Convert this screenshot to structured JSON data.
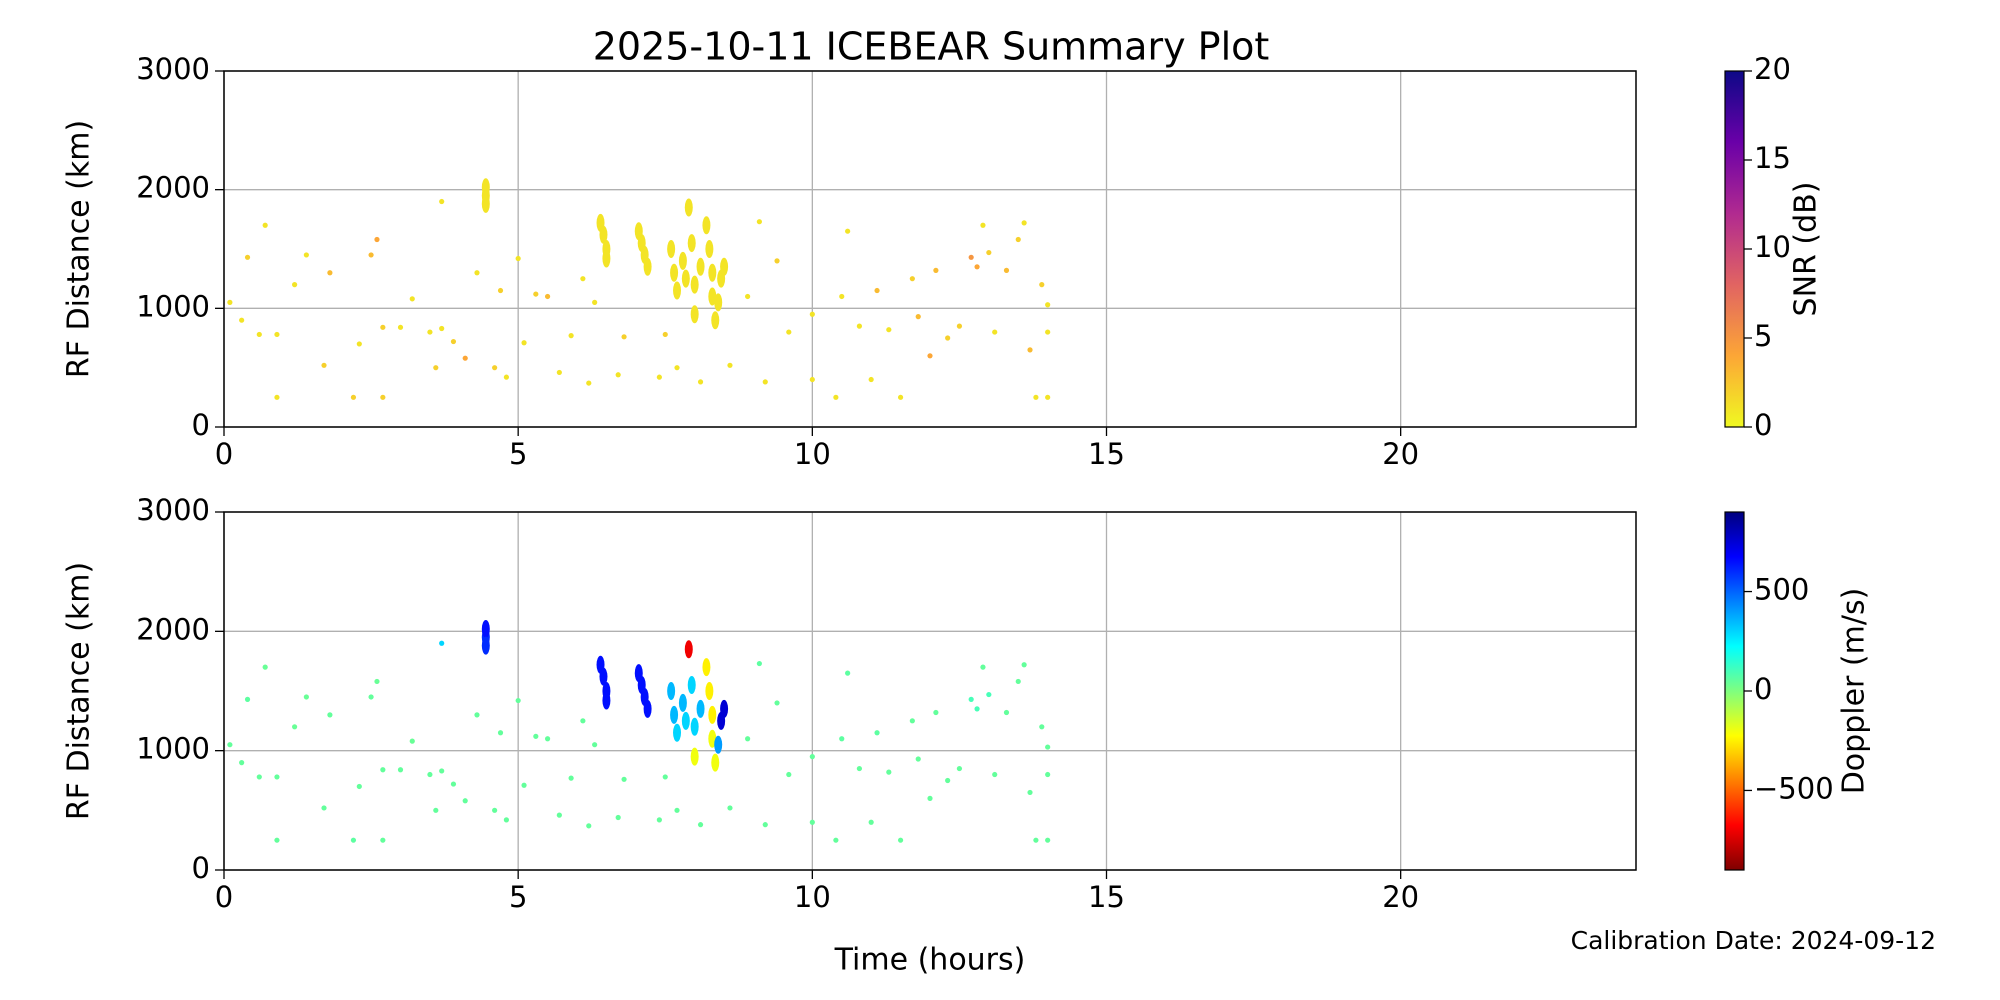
{
  "chart_data": [
    {
      "type": "scatter",
      "title": "2025-10-11 ICEBEAR Summary Plot",
      "ylabel": "RF Distance (km)",
      "x": [
        0.1,
        0.3,
        0.4,
        0.6,
        0.7,
        0.9,
        0.9,
        1.2,
        1.4,
        1.7,
        1.8,
        2.2,
        2.3,
        2.5,
        2.6,
        2.7,
        2.7,
        3.0,
        3.2,
        3.5,
        3.6,
        3.7,
        3.7,
        3.9,
        4.1,
        4.3,
        4.6,
        4.7,
        4.8,
        5.0,
        5.1,
        5.3,
        5.5,
        5.7,
        5.9,
        6.1,
        6.2,
        6.3,
        6.7,
        6.8,
        7.4,
        7.5,
        7.7,
        8.1,
        8.6,
        8.9,
        9.1,
        9.2,
        9.4,
        9.6,
        10.0,
        10.0,
        10.4,
        10.5,
        10.6,
        10.8,
        11.0,
        11.1,
        11.3,
        11.5,
        11.7,
        11.8,
        12.0,
        12.1,
        12.3,
        12.5,
        12.7,
        12.8,
        12.9,
        13.0,
        13.1,
        13.3,
        13.5,
        13.6,
        13.7,
        13.8,
        13.9,
        14.0,
        14.0,
        14.0,
        4.45,
        4.45,
        4.45,
        6.4,
        6.45,
        6.5,
        6.5,
        7.05,
        7.1,
        7.15,
        7.2,
        7.6,
        7.65,
        7.7,
        7.8,
        7.85,
        7.9,
        7.95,
        8.0,
        8.0,
        8.1,
        8.2,
        8.25,
        8.3,
        8.3,
        8.35,
        8.45,
        8.5,
        8.4
      ],
      "y": [
        1050,
        900,
        1430,
        780,
        1700,
        250,
        780,
        1200,
        1450,
        520,
        1300,
        250,
        700,
        1450,
        1580,
        840,
        250,
        840,
        1080,
        800,
        500,
        1900,
        830,
        720,
        580,
        1300,
        500,
        1150,
        420,
        1420,
        710,
        1120,
        1100,
        460,
        770,
        1250,
        370,
        1050,
        440,
        760,
        420,
        780,
        500,
        380,
        520,
        1100,
        1730,
        380,
        1400,
        800,
        400,
        950,
        250,
        1100,
        1650,
        850,
        400,
        1150,
        820,
        250,
        1250,
        930,
        600,
        1320,
        750,
        850,
        1430,
        1350,
        1700,
        1470,
        800,
        1320,
        1580,
        1720,
        650,
        250,
        1200,
        250,
        1030,
        800,
        1950,
        2020,
        1880,
        1720,
        1620,
        1500,
        1420,
        1650,
        1550,
        1450,
        1350,
        1500,
        1300,
        1150,
        1400,
        1250,
        1850,
        1550,
        950,
        1200,
        1350,
        1700,
        1500,
        1300,
        1100,
        900,
        1250,
        1350,
        1050
      ],
      "c": [
        1,
        1,
        2,
        1,
        1,
        1,
        1,
        1,
        1,
        2,
        3,
        2,
        1,
        3,
        4,
        2,
        2,
        1,
        1,
        1,
        2,
        1,
        1,
        2,
        4,
        1,
        2,
        2,
        1,
        1,
        1,
        2,
        3,
        1,
        1,
        1,
        1,
        1,
        1,
        2,
        1,
        2,
        1,
        1,
        1,
        1,
        1,
        1,
        2,
        1,
        1,
        1,
        1,
        1,
        1,
        1,
        1,
        3,
        1,
        1,
        2,
        3,
        4,
        3,
        2,
        2,
        5,
        4,
        1,
        2,
        1,
        3,
        2,
        1,
        3,
        1,
        2,
        1,
        1,
        1,
        1,
        1,
        1,
        1,
        1,
        1,
        1,
        1,
        1,
        1,
        1,
        1,
        1,
        1,
        1,
        1,
        1,
        1,
        1,
        1,
        1,
        1,
        1,
        1,
        1,
        1,
        1,
        1,
        1
      ],
      "xlim": [
        0,
        24
      ],
      "xticks": [
        0,
        5,
        10,
        15,
        20
      ],
      "ylim": [
        0,
        3000
      ],
      "yticks": [
        0,
        1000,
        2000,
        3000
      ],
      "grid": true,
      "colorbar": {
        "label": "SNR (dB)",
        "clim": [
          0,
          20
        ],
        "ticks": [
          0,
          5,
          10,
          15,
          20
        ],
        "colormap": "plasma_r"
      }
    },
    {
      "type": "scatter",
      "ylabel": "RF Distance (km)",
      "xlabel": "Time (hours)",
      "x": [
        0.1,
        0.3,
        0.4,
        0.6,
        0.7,
        0.9,
        0.9,
        1.2,
        1.4,
        1.7,
        1.8,
        2.2,
        2.3,
        2.5,
        2.6,
        2.7,
        2.7,
        3.0,
        3.2,
        3.5,
        3.6,
        3.7,
        3.7,
        3.9,
        4.1,
        4.3,
        4.6,
        4.7,
        4.8,
        5.0,
        5.1,
        5.3,
        5.5,
        5.7,
        5.9,
        6.1,
        6.2,
        6.3,
        6.7,
        6.8,
        7.4,
        7.5,
        7.7,
        8.1,
        8.6,
        8.9,
        9.1,
        9.2,
        9.4,
        9.6,
        10.0,
        10.0,
        10.4,
        10.5,
        10.6,
        10.8,
        11.0,
        11.1,
        11.3,
        11.5,
        11.7,
        11.8,
        12.0,
        12.1,
        12.3,
        12.5,
        12.7,
        12.8,
        12.9,
        13.0,
        13.1,
        13.3,
        13.5,
        13.6,
        13.7,
        13.8,
        13.9,
        14.0,
        14.0,
        14.0,
        4.45,
        4.45,
        4.45,
        6.4,
        6.45,
        6.5,
        6.5,
        7.05,
        7.1,
        7.15,
        7.2,
        7.6,
        7.65,
        7.7,
        7.8,
        7.85,
        7.9,
        7.95,
        8.0,
        8.0,
        8.1,
        8.2,
        8.25,
        8.3,
        8.3,
        8.35,
        8.45,
        8.5,
        8.4
      ],
      "y": [
        1050,
        900,
        1430,
        780,
        1700,
        250,
        780,
        1200,
        1450,
        520,
        1300,
        250,
        700,
        1450,
        1580,
        840,
        250,
        840,
        1080,
        800,
        500,
        1900,
        830,
        720,
        580,
        1300,
        500,
        1150,
        420,
        1420,
        710,
        1120,
        1100,
        460,
        770,
        1250,
        370,
        1050,
        440,
        760,
        420,
        780,
        500,
        380,
        520,
        1100,
        1730,
        380,
        1400,
        800,
        400,
        950,
        250,
        1100,
        1650,
        850,
        400,
        1150,
        820,
        250,
        1250,
        930,
        600,
        1320,
        750,
        850,
        1430,
        1350,
        1700,
        1470,
        800,
        1320,
        1580,
        1720,
        650,
        250,
        1200,
        250,
        1030,
        800,
        1950,
        2020,
        1880,
        1720,
        1620,
        1500,
        1420,
        1650,
        1550,
        1450,
        1350,
        1500,
        1300,
        1150,
        1400,
        1250,
        1850,
        1550,
        950,
        1200,
        1350,
        1700,
        1500,
        1300,
        1100,
        900,
        1250,
        1350,
        1050
      ],
      "c": [
        50,
        50,
        60,
        50,
        40,
        50,
        50,
        40,
        40,
        50,
        50,
        60,
        50,
        50,
        40,
        50,
        50,
        50,
        40,
        50,
        50,
        300,
        50,
        50,
        50,
        50,
        50,
        50,
        50,
        50,
        50,
        50,
        50,
        50,
        50,
        50,
        50,
        50,
        50,
        50,
        50,
        50,
        50,
        50,
        50,
        50,
        60,
        50,
        50,
        50,
        50,
        50,
        50,
        60,
        60,
        50,
        50,
        60,
        50,
        50,
        50,
        50,
        50,
        50,
        50,
        50,
        100,
        100,
        50,
        100,
        50,
        50,
        50,
        50,
        50,
        50,
        50,
        50,
        50,
        50,
        600,
        650,
        600,
        650,
        650,
        650,
        650,
        650,
        650,
        650,
        650,
        350,
        350,
        300,
        350,
        300,
        -700,
        300,
        -200,
        300,
        350,
        -250,
        -250,
        -250,
        -200,
        -200,
        750,
        750,
        400
      ],
      "xlim": [
        0,
        24
      ],
      "xticks": [
        0,
        5,
        10,
        15,
        20
      ],
      "ylim": [
        0,
        3000
      ],
      "yticks": [
        0,
        1000,
        2000,
        3000
      ],
      "grid": true,
      "colorbar": {
        "label": "Doppler (m/s)",
        "clim": [
          -900,
          900
        ],
        "ticks": [
          {
            "value": -500,
            "label": "−500"
          },
          0,
          500
        ],
        "colormap": "jet_r"
      }
    }
  ],
  "footnote": "Calibration Date: 2024-09-12"
}
